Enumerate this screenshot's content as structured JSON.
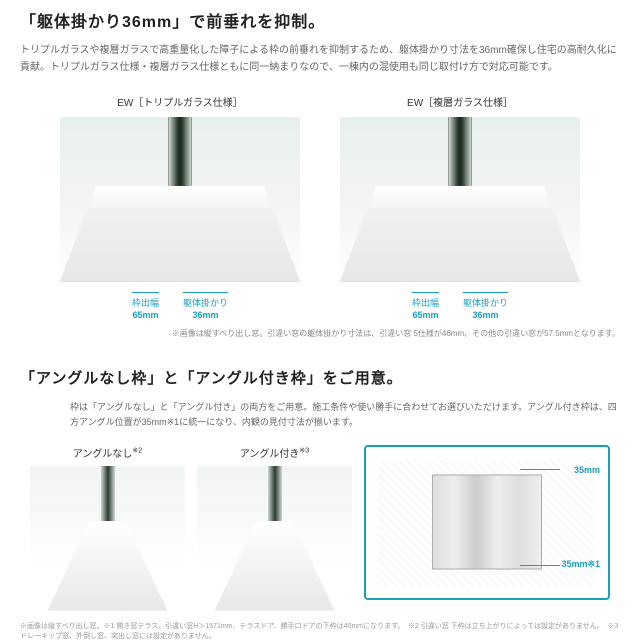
{
  "section1": {
    "title": "「躯体掛かり36mm」で前垂れを抑制。",
    "description": "トリプルガラスや複層ガラスで高重量化した障子による枠の前垂れを抑制するため、躯体掛かり寸法を36mm確保し住宅の高耐久化に貢献。トリプルガラス仕様・複層ガラス仕様ともに同一納まりなので、一棟内の混使用も同じ取付け方で対応可能です。",
    "products": [
      {
        "label": "EW［トリプルガラス仕様］",
        "dim1_label": "枠出幅",
        "dim1_val": "65mm",
        "dim2_label": "躯体掛かり",
        "dim2_val": "36mm"
      },
      {
        "label": "EW［複層ガラス仕様］",
        "dim1_label": "枠出幅",
        "dim1_val": "65mm",
        "dim2_label": "躯体掛かり",
        "dim2_val": "36mm"
      }
    ],
    "note": "※画像は縦すべり出し窓。引違い窓の躯体掛かり寸法は、引違い窓 5仕様が46mm、その他の引違い窓が57.5mmとなります。"
  },
  "section2": {
    "title": "「アングルなし枠」と「アングル付き枠」をご用意。",
    "description": "枠は「アングルなし」と「アングル付き」の両方をご用意。施工条件や使い勝手に合わせてお選びいただけます。アングル付き枠は、四方アングル位置が35mm※1に統一になり、内観の見付寸法が揃います。",
    "frames": [
      {
        "label": "アングルなし",
        "sup": "※2"
      },
      {
        "label": "アングル付き",
        "sup": "※3"
      }
    ],
    "tech_dims": [
      "35mm",
      "35mm※1"
    ],
    "note": "※画像は縦すべり出し窓。※1 開き窓テラス、引違い窓H＞1571mm、テラスドア、勝手口ドアの下枠は40mmになります。　※2 引違い窓 下枠は立ち上がりによっては設定がありません。　※3 ドレーキップ窓、外倒し窓、突出し窓には設定がありません。"
  }
}
